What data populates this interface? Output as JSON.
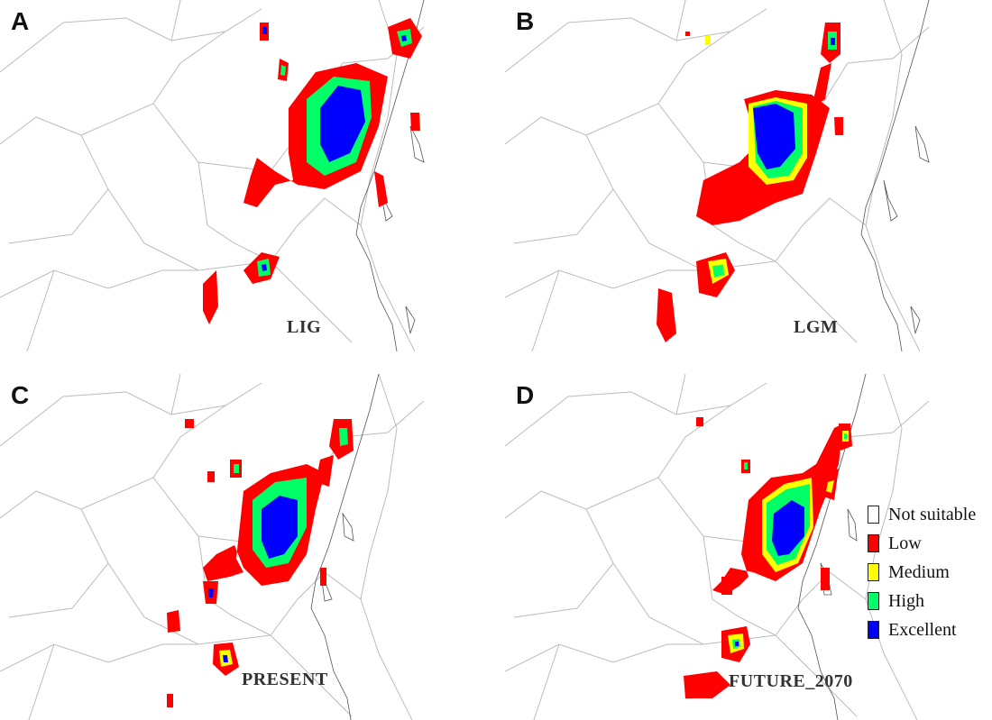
{
  "figure": {
    "panels": [
      {
        "id": "a",
        "letter": "A",
        "period": "LIG"
      },
      {
        "id": "b",
        "letter": "B",
        "period": "LGM"
      },
      {
        "id": "c",
        "letter": "C",
        "period": "PRESENT"
      },
      {
        "id": "d",
        "letter": "D",
        "period": "FUTURE_2070"
      }
    ]
  },
  "legend": {
    "items": [
      {
        "label": "Not suitable",
        "color": "#ffffff"
      },
      {
        "label": "Low",
        "color": "#ff0000"
      },
      {
        "label": "Medium",
        "color": "#ffff00"
      },
      {
        "label": "High",
        "color": "#00ff66"
      },
      {
        "label": "Excellent",
        "color": "#0000ff"
      }
    ]
  }
}
